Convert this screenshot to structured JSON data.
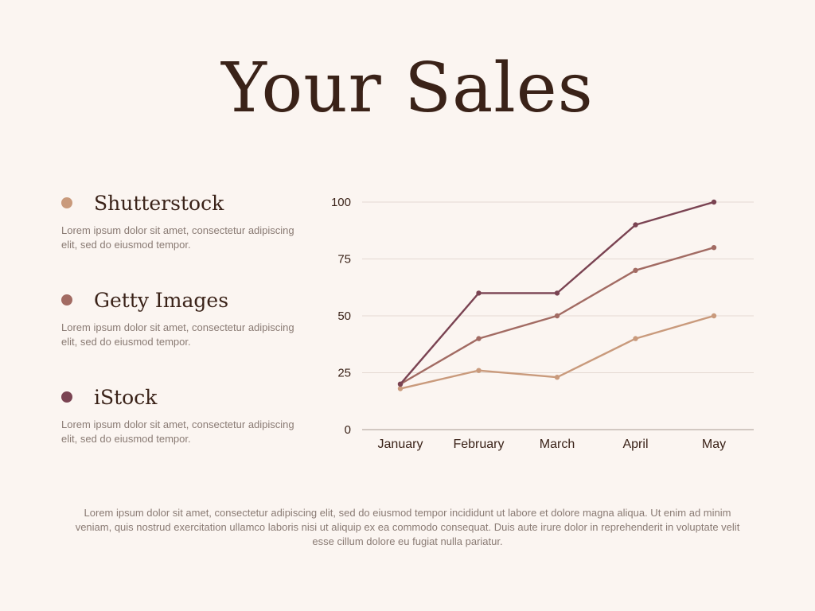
{
  "title": "Your Sales",
  "legend": [
    {
      "name": "Shutterstock",
      "color": "#c99a7c",
      "description": "Lorem ipsum dolor sit amet, consectetur adipiscing elit, sed do eiusmod tempor."
    },
    {
      "name": "Getty Images",
      "color": "#a26b63",
      "description": "Lorem ipsum dolor sit amet, consectetur adipiscing elit, sed do eiusmod tempor."
    },
    {
      "name": "iStock",
      "color": "#7a4352",
      "description": "Lorem ipsum dolor sit amet, consectetur adipiscing elit, sed do eiusmod tempor."
    }
  ],
  "chart_data": {
    "type": "line",
    "categories": [
      "January",
      "February",
      "March",
      "April",
      "May"
    ],
    "series": [
      {
        "name": "Shutterstock",
        "color": "#c99a7c",
        "values": [
          18,
          26,
          23,
          40,
          50
        ]
      },
      {
        "name": "Getty Images",
        "color": "#a26b63",
        "values": [
          20,
          40,
          50,
          70,
          80
        ]
      },
      {
        "name": "iStock",
        "color": "#7a4352",
        "values": [
          20,
          60,
          60,
          90,
          100
        ]
      }
    ],
    "yticks": [
      0,
      25,
      50,
      75,
      100
    ],
    "ylim": [
      0,
      100
    ],
    "grid": true,
    "legend_position": "left"
  },
  "footer": "Lorem ipsum dolor sit amet, consectetur adipiscing elit, sed do eiusmod tempor incididunt ut labore et dolore magna aliqua. Ut enim ad minim veniam, quis nostrud exercitation ullamco laboris nisi ut aliquip ex ea commodo consequat. Duis aute irure dolor in reprehenderit in voluptate velit esse cillum dolore eu fugiat nulla pariatur."
}
